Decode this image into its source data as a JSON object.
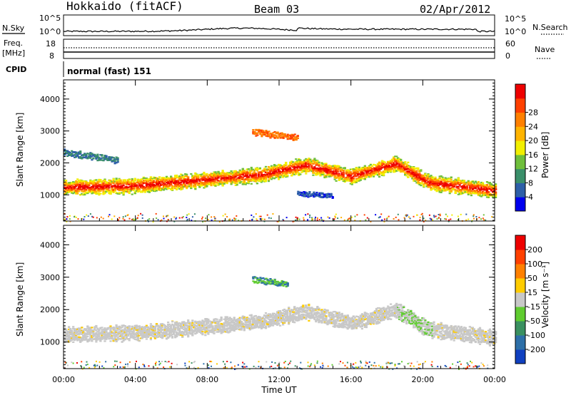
{
  "header": {
    "station": "Hokkaido (fitACF)",
    "beam": "Beam 03",
    "date": "02/Apr/2012"
  },
  "top_panels": {
    "nsky_label": "N.Sky",
    "nsky_ticks": [
      "10^5",
      "10^0"
    ],
    "nsearch_label": "N.Search",
    "nsearch_ticks": [
      "10^5",
      "10^0"
    ],
    "freq_label": "Freq.",
    "freq_unit": "[MHz]",
    "freq_ticks": [
      "18",
      "8"
    ],
    "nave_label": "Nave",
    "nave_ticks": [
      "60",
      "0"
    ],
    "cpid_label": "CPID",
    "cpid_value": "normal (fast) 151"
  },
  "chart_data": [
    {
      "type": "heatmap",
      "name": "power",
      "ylabel": "Slant Range [km]",
      "xlim": [
        "00:00",
        "24:00"
      ],
      "ylim": [
        180,
        4600
      ],
      "yticks": [
        "1000",
        "2000",
        "3000",
        "4000"
      ],
      "colorbar": {
        "label": "Power [dB]",
        "ticks": [
          "4",
          "8",
          "12",
          "16",
          "20",
          "24",
          "28"
        ],
        "colors": [
          "#0000ee",
          "#2d5fa8",
          "#3a8f6a",
          "#6fbf3c",
          "#f2ef00",
          "#ffb400",
          "#ff8000",
          "#ff4000",
          "#ee0000"
        ]
      },
      "bands": [
        {
          "t": [
            0,
            4,
            8,
            11,
            13.5,
            16,
            18.5,
            20.3,
            24
          ],
          "center_km": [
            1250,
            1300,
            1500,
            1650,
            1950,
            1600,
            2000,
            1400,
            1150
          ],
          "width_km": 450
        },
        {
          "t": [
            0,
            3
          ],
          "center_km": [
            2350,
            2100
          ],
          "width_km": 200
        },
        {
          "t": [
            10.5,
            13
          ],
          "center_km": [
            3000,
            2800
          ],
          "width_km": 200
        },
        {
          "t": [
            13,
            15
          ],
          "center_km": [
            1050,
            1000
          ],
          "width_km": 150
        }
      ]
    },
    {
      "type": "heatmap",
      "name": "velocity",
      "ylabel": "Slant Range [km]",
      "xlabel": "Time UT",
      "xticks": [
        "00:00",
        "04:00",
        "08:00",
        "12:00",
        "16:00",
        "20:00",
        "00:00"
      ],
      "xlim": [
        "00:00",
        "24:00"
      ],
      "ylim": [
        180,
        4600
      ],
      "yticks": [
        "1000",
        "2000",
        "3000",
        "4000"
      ],
      "colorbar": {
        "label": "Velocity [m s^-1]",
        "ticks": [
          "200",
          "100",
          "50",
          "15",
          "-15",
          "-50",
          "-100",
          "-200"
        ],
        "colors": [
          "#1040c0",
          "#2d6fa8",
          "#3a9060",
          "#60cc30",
          "#c8c8c8",
          "#ffcc00",
          "#ff8000",
          "#ff4000",
          "#ee0000"
        ]
      },
      "bands": [
        {
          "t": [
            0,
            4,
            8,
            11,
            13.5,
            16,
            18.5,
            20.3,
            24
          ],
          "center_km": [
            1250,
            1300,
            1500,
            1650,
            1950,
            1600,
            2000,
            1400,
            1150
          ],
          "width_km": 450
        },
        {
          "t": [
            10.5,
            12.5
          ],
          "center_km": [
            2950,
            2800
          ],
          "width_km": 200
        }
      ]
    }
  ]
}
